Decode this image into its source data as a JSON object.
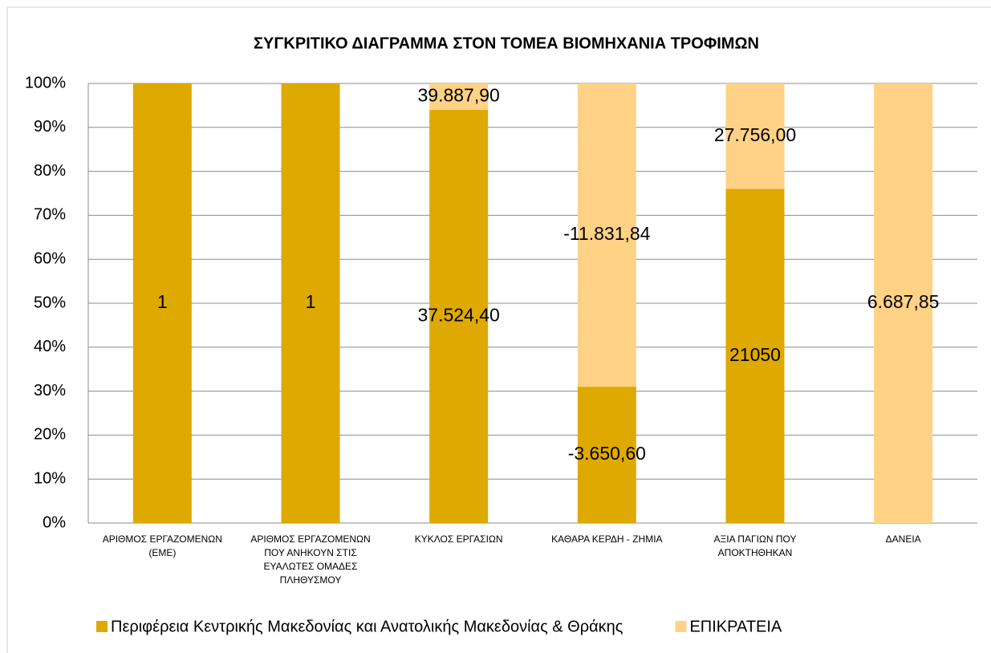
{
  "chart_data": {
    "type": "bar",
    "stacked": "percent",
    "title": "ΣΥΓΚΡΙΤΙΚΟ ΔΙΑΓΡΑΜΜΑ ΣΤΟΝ ΤΟΜΕΑ ΒΙΟΜΗΧΑΝΙΑ ΤΡΟΦΙΜΩΝ",
    "categories": [
      "ΑΡΙΘΜΟΣ ΕΡΓΑΖΟΜΕΝΩΝ (ΕΜΕ)",
      "ΑΡΙΘΜΟΣ ΕΡΓΑΖΟΜΕΝΩΝ ΠΟΥ ΑΝΗΚΟΥΝ ΣΤΙΣ ΕΥΑΛΩΤΕΣ ΟΜΑΔΕΣ ΠΛΗΘΥΣΜΟΥ",
      "ΚΥΚΛΟΣ ΕΡΓΑΣΙΩΝ",
      "ΚΑΘΑΡΑ ΚΕΡΔΗ - ΖΗΜΙΑ",
      "ΑΞΙΑ ΠΑΓΙΩΝ ΠΟΥ ΑΠΟΚΤΗΘΗΚΑΝ",
      "ΔΑΝΕΙΑ"
    ],
    "series": [
      {
        "name": "Περιφέρεια Κεντρικής Μακεδονίας και Ανατολικής Μακεδονίας & Θράκης",
        "color": "#dea900",
        "values": [
          100,
          100,
          94,
          31,
          76,
          0
        ],
        "value_labels": [
          "1",
          "1",
          "37.524,40",
          "-3.650,60",
          "21050",
          null
        ]
      },
      {
        "name": "ΕΠΙΚΡΑΤΕΙΑ",
        "color": "#ffd285",
        "values": [
          0,
          0,
          6,
          69,
          24,
          100
        ],
        "value_labels": [
          null,
          null,
          "39.887,90",
          "-11.831,84",
          "27.756,00",
          "6.687,85"
        ]
      }
    ],
    "ylim": [
      0,
      100
    ],
    "yticks": [
      {
        "value": 0,
        "label": "0%"
      },
      {
        "value": 10,
        "label": "10%"
      },
      {
        "value": 20,
        "label": "20%"
      },
      {
        "value": 30,
        "label": "30%"
      },
      {
        "value": 40,
        "label": "40%"
      },
      {
        "value": 50,
        "label": "50%"
      },
      {
        "value": 60,
        "label": "60%"
      },
      {
        "value": 70,
        "label": "70%"
      },
      {
        "value": 80,
        "label": "80%"
      },
      {
        "value": 90,
        "label": "90%"
      },
      {
        "value": 100,
        "label": "100%"
      }
    ],
    "grid": true,
    "legend": "bottom"
  }
}
